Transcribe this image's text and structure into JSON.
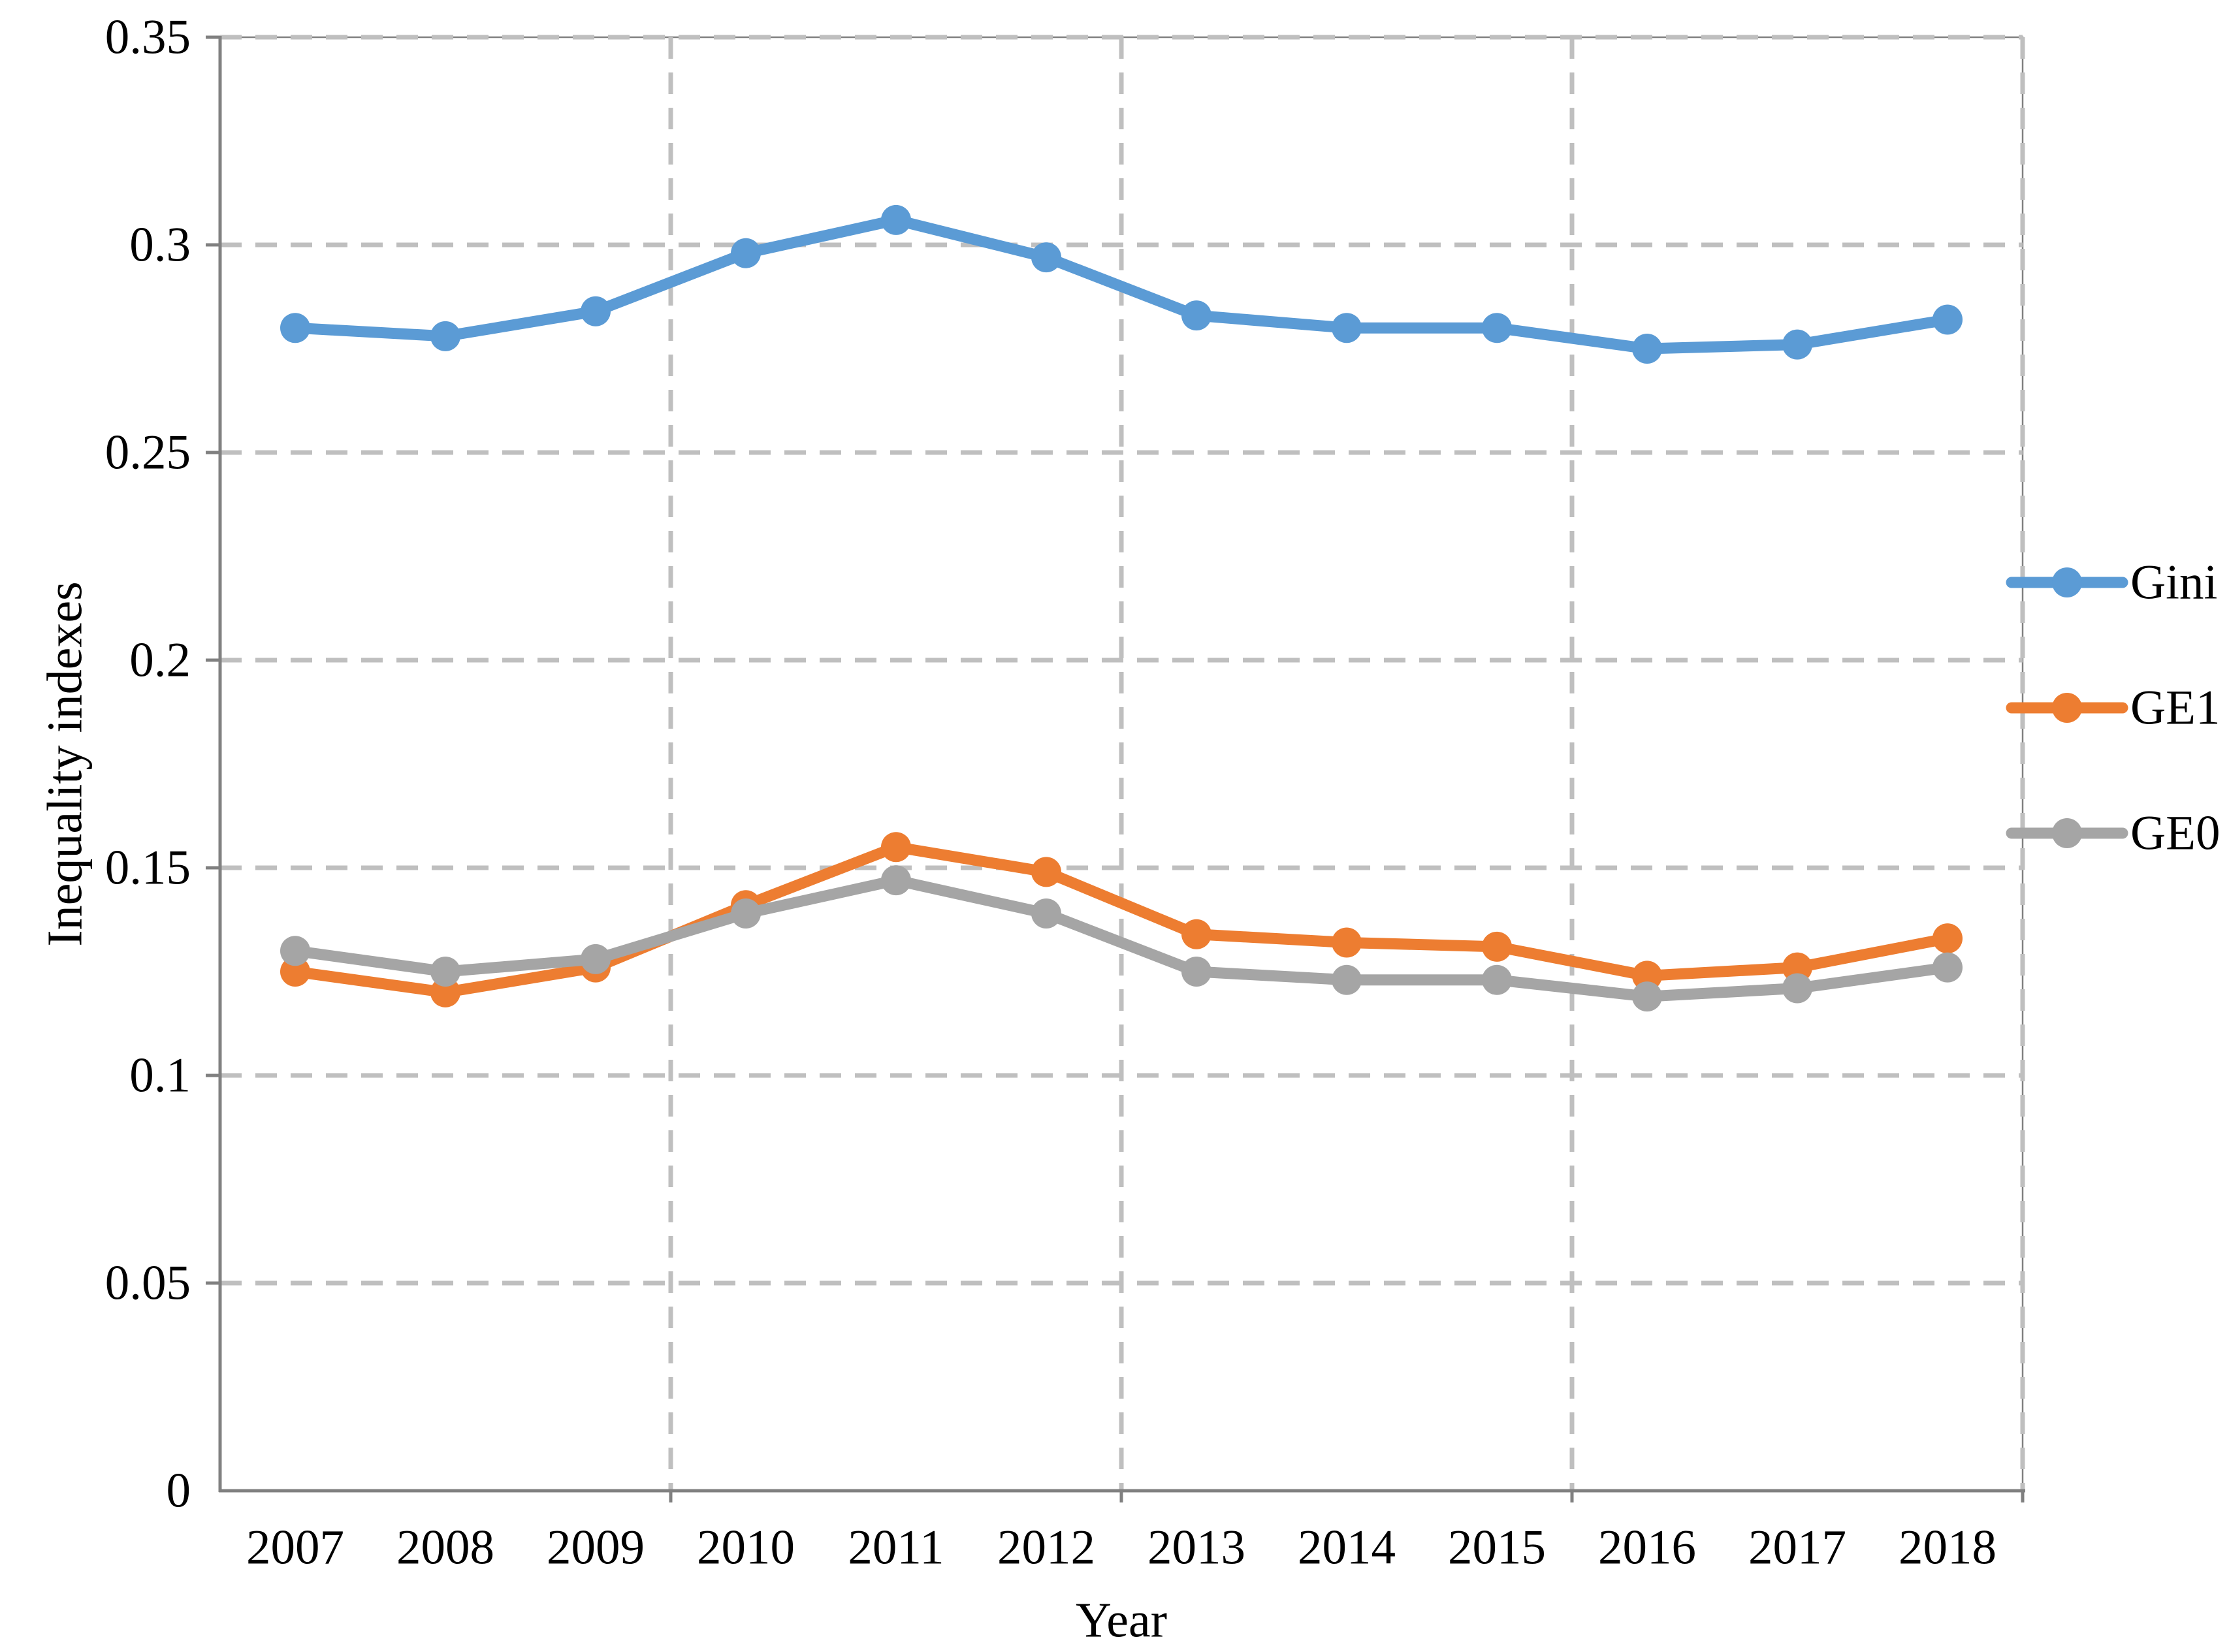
{
  "chart_data": {
    "type": "line",
    "title": "",
    "xlabel": "Year",
    "ylabel": "Inequality indexes",
    "categories": [
      "2007",
      "2008",
      "2009",
      "2010",
      "2011",
      "2012",
      "2013",
      "2014",
      "2015",
      "2016",
      "2017",
      "2018"
    ],
    "series": [
      {
        "name": "Gini",
        "color": "#5B9BD5",
        "values": [
          0.28,
          0.278,
          0.284,
          0.298,
          0.306,
          0.297,
          0.283,
          0.28,
          0.28,
          0.275,
          0.276,
          0.282
        ]
      },
      {
        "name": "GE1",
        "color": "#ED7D31",
        "values": [
          0.125,
          0.12,
          0.126,
          0.141,
          0.155,
          0.149,
          0.134,
          0.132,
          0.131,
          0.124,
          0.126,
          0.133
        ]
      },
      {
        "name": "GE0",
        "color": "#A5A5A5",
        "values": [
          0.13,
          0.125,
          0.128,
          0.139,
          0.147,
          0.139,
          0.125,
          0.123,
          0.123,
          0.119,
          0.121,
          0.126
        ]
      }
    ],
    "ylim": [
      0,
      0.35
    ],
    "ytick_step": 0.05,
    "ytick_labels": [
      "0",
      "0.05",
      "0.1",
      "0.15",
      "0.2",
      "0.25",
      "0.3",
      "0.35"
    ],
    "grid": {
      "horizontal": true,
      "vertical_every_categories": 3,
      "style": "dashed",
      "color": "#BFBFBF"
    },
    "axis_color": "#808080",
    "legend": {
      "position": "right",
      "entries": [
        "Gini",
        "GE1",
        "GE0"
      ]
    }
  }
}
